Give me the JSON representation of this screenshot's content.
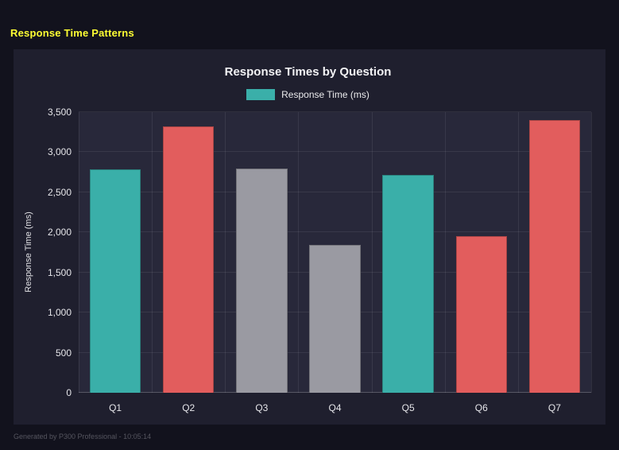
{
  "page": {
    "heading": "Response Time Patterns",
    "footer": "Generated by P300 Professional - 10:05:14"
  },
  "chart_data": {
    "type": "bar",
    "title": "Response Times by Question",
    "legend": [
      {
        "label": "Response Time (ms)",
        "color": "#3aafa9"
      }
    ],
    "legend_position": "top",
    "categories": [
      "Q1",
      "Q2",
      "Q3",
      "Q4",
      "Q5",
      "Q6",
      "Q7"
    ],
    "series": [
      {
        "name": "Response Time (ms)",
        "values": [
          2790,
          3320,
          2800,
          1840,
          2720,
          1950,
          3400
        ]
      }
    ],
    "bar_colors": [
      "#3aafa9",
      "#e25d5d",
      "#9a9aa2",
      "#9a9aa2",
      "#3aafa9",
      "#e25d5d",
      "#e25d5d"
    ],
    "xlabel": "",
    "ylabel": "Response Time (ms)",
    "ylim": [
      0,
      3500
    ],
    "yticks": [
      0,
      500,
      1000,
      1500,
      2000,
      2500,
      3000,
      3500
    ],
    "ytick_labels": [
      "0",
      "500",
      "1,000",
      "1,500",
      "2,000",
      "2,500",
      "3,000",
      "3,500"
    ],
    "grid": true
  },
  "colors": {
    "background": "#12121d",
    "panel": "#1f1f2e",
    "plot": "#28283a",
    "heading": "#ffff33",
    "teal": "#3aafa9",
    "red": "#e25d5d",
    "gray": "#9a9aa2"
  }
}
